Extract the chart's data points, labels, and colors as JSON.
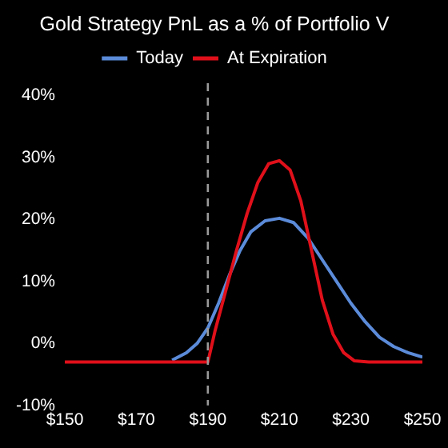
{
  "chart_data": {
    "type": "line",
    "title": "Gold Strategy PnL as a % of Portfolio V",
    "series": [
      {
        "name": "Today",
        "color": "#5b8bd9",
        "x": [
          180,
          184,
          187,
          190,
          193,
          196,
          199,
          202,
          206,
          210,
          214,
          218,
          222,
          226,
          230,
          234,
          238,
          242,
          246,
          250
        ],
        "values": [
          -2.7,
          -1.5,
          0,
          2.5,
          6.5,
          11,
          15,
          18,
          19.8,
          20.2,
          19.5,
          17,
          13.5,
          10,
          6.5,
          3.5,
          1,
          -0.5,
          -1.5,
          -2.2
        ]
      },
      {
        "name": "At Expiration",
        "color": "#e0101a",
        "x": [
          150,
          185,
          190,
          192,
          195,
          198,
          201,
          204,
          207,
          210,
          213,
          216,
          219,
          222,
          225,
          228,
          231,
          235,
          250
        ],
        "values": [
          -3,
          -3,
          -3,
          2,
          8.5,
          15,
          21,
          26,
          29,
          29.5,
          28,
          23,
          15,
          7,
          1.5,
          -1.5,
          -2.8,
          -3,
          -3
        ]
      }
    ],
    "xlim": [
      150,
      250
    ],
    "xticks": [
      {
        "value": 150,
        "label": "$150"
      },
      {
        "value": 170,
        "label": "$170"
      },
      {
        "value": 190,
        "label": "$190"
      },
      {
        "value": 210,
        "label": "$210"
      },
      {
        "value": 230,
        "label": "$230"
      },
      {
        "value": 250,
        "label": "$250"
      }
    ],
    "ylim": [
      -10,
      42
    ],
    "yticks": [
      {
        "value": -10,
        "label": "-10%"
      },
      {
        "value": 0,
        "label": "0%"
      },
      {
        "value": 10,
        "label": "10%"
      },
      {
        "value": 20,
        "label": "20%"
      },
      {
        "value": 30,
        "label": "30%"
      },
      {
        "value": 40,
        "label": "40%"
      }
    ],
    "ref_lines": [
      {
        "axis": "x",
        "value": 190,
        "color": "#9a9a9a",
        "line_style": "dashed"
      }
    ],
    "legend": "top",
    "grid": false,
    "marker": "none",
    "line_style": "solid"
  }
}
